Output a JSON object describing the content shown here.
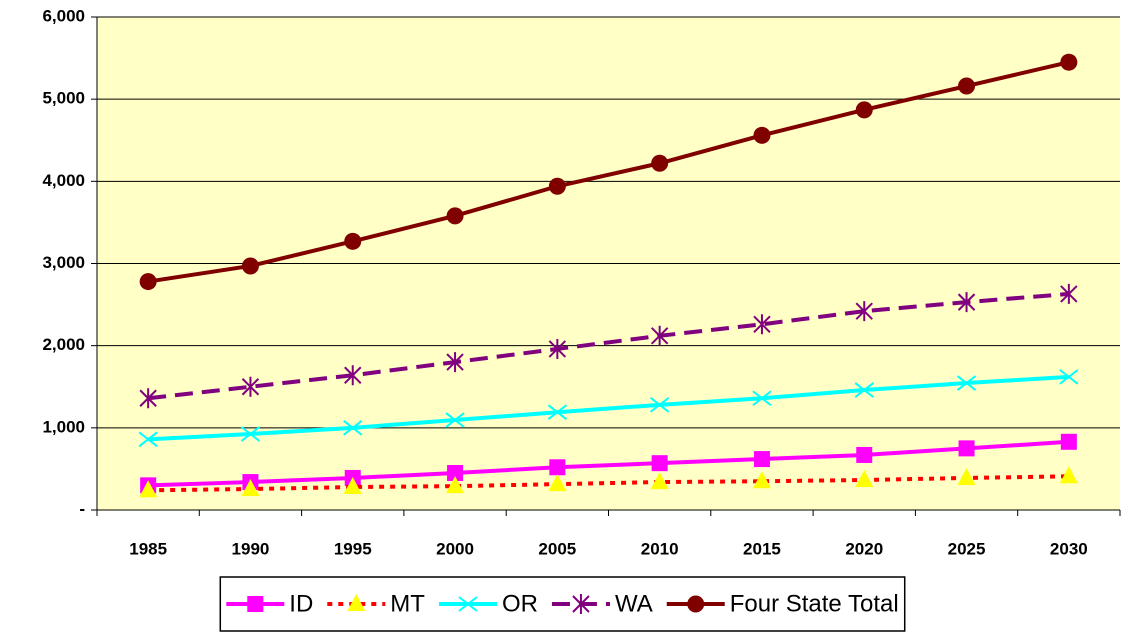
{
  "chart_data": {
    "type": "line",
    "categories": [
      "1985",
      "1990",
      "1995",
      "2000",
      "2005",
      "2010",
      "2015",
      "2020",
      "2025",
      "2030"
    ],
    "ylim": [
      0,
      6000
    ],
    "yticks": [
      {
        "value": 0,
        "label": "-"
      },
      {
        "value": 1000,
        "label": "1,000"
      },
      {
        "value": 2000,
        "label": "2,000"
      },
      {
        "value": 3000,
        "label": "3,000"
      },
      {
        "value": 4000,
        "label": "4,000"
      },
      {
        "value": 5000,
        "label": "5,000"
      },
      {
        "value": 6000,
        "label": "6,000"
      }
    ],
    "grid": true,
    "legend": "bottom",
    "plot_background": "#ffffc6",
    "series": [
      {
        "name": "ID",
        "color": "#ff00ff",
        "marker": "square",
        "dash": "solid",
        "values": [
          300,
          340,
          390,
          450,
          520,
          570,
          620,
          670,
          750,
          830
        ]
      },
      {
        "name": "MT",
        "color": "#ff0000",
        "marker": "triangle",
        "dash": "dotted",
        "marker_color": "#ffff00",
        "values": [
          240,
          255,
          280,
          290,
          315,
          340,
          350,
          365,
          390,
          410
        ]
      },
      {
        "name": "OR",
        "color": "#00ffff",
        "marker": "x",
        "dash": "solid",
        "values": [
          860,
          925,
          1000,
          1095,
          1190,
          1280,
          1360,
          1460,
          1545,
          1620
        ]
      },
      {
        "name": "WA",
        "color": "#800080",
        "marker": "asterisk",
        "dash": "dashed",
        "values": [
          1360,
          1500,
          1640,
          1800,
          1960,
          2120,
          2260,
          2420,
          2530,
          2630
        ]
      },
      {
        "name": "Four State Total",
        "color": "#800000",
        "marker": "circle",
        "dash": "solid",
        "values": [
          2780,
          2970,
          3270,
          3580,
          3940,
          4220,
          4560,
          4870,
          5160,
          5450
        ]
      }
    ]
  }
}
